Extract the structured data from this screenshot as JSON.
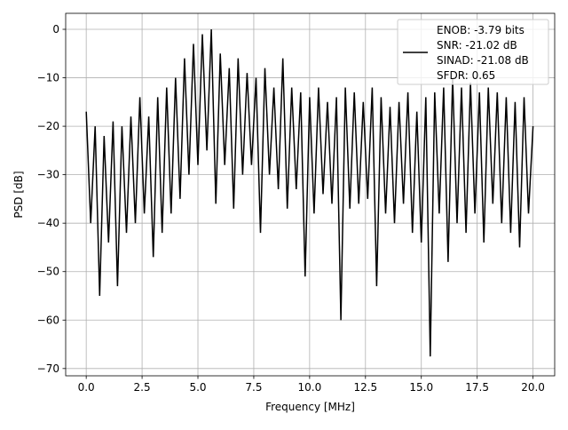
{
  "chart_data": {
    "type": "line",
    "title": "",
    "xlabel": "Frequency [MHz]",
    "ylabel": "PSD [dB]",
    "xlim": [
      -0.92,
      20.97
    ],
    "ylim": [
      -71.5,
      3.3
    ],
    "grid": true,
    "line_color": "#000000",
    "grid_color": "#b0b0b0",
    "xticks": [
      0,
      2.5,
      5,
      7.5,
      10,
      12.5,
      15,
      17.5,
      20
    ],
    "xtick_labels": [
      "0.0",
      "2.5",
      "5.0",
      "7.5",
      "10.0",
      "12.5",
      "15.0",
      "17.5",
      "20.0"
    ],
    "yticks": [
      0,
      -10,
      -20,
      -30,
      -40,
      -50,
      -60,
      -70
    ],
    "ytick_labels": [
      "0",
      "−10",
      "−20",
      "−30",
      "−40",
      "−50",
      "−60",
      "−70"
    ],
    "legend_placement": "upper right",
    "legend": [
      "ENOB: -3.79 bits",
      "SNR: -21.02 dB",
      "SINAD: -21.08 dB",
      "SFDR: 0.65"
    ],
    "series": [
      {
        "x": [
          0,
          0.2,
          0.4,
          0.6,
          0.8,
          1,
          1.2,
          1.4,
          1.6,
          1.8,
          2,
          2.2,
          2.4,
          2.6,
          2.8,
          3,
          3.2,
          3.4,
          3.6,
          3.8,
          4,
          4.2,
          4.4,
          4.6,
          4.8,
          5,
          5.2,
          5.4,
          5.6,
          5.8,
          6,
          6.2,
          6.4,
          6.6,
          6.8,
          7,
          7.2,
          7.4,
          7.6,
          7.8,
          8,
          8.2,
          8.4,
          8.6,
          8.8,
          9,
          9.2,
          9.4,
          9.6,
          9.8,
          10,
          10.2,
          10.4,
          10.6,
          10.8,
          11,
          11.2,
          11.4,
          11.6,
          11.8,
          12,
          12.2,
          12.4,
          12.6,
          12.8,
          13,
          13.2,
          13.4,
          13.6,
          13.8,
          14,
          14.2,
          14.4,
          14.6,
          14.8,
          15,
          15.2,
          15.4,
          15.6,
          15.8,
          16,
          16.2,
          16.4,
          16.6,
          16.8,
          17,
          17.2,
          17.4,
          17.6,
          17.8,
          18,
          18.2,
          18.4,
          18.6,
          18.8,
          19,
          19.2,
          19.4,
          19.6,
          19.8,
          20
        ],
        "y": [
          -17,
          -40,
          -20,
          -55,
          -22,
          -44,
          -19,
          -53,
          -20,
          -42,
          -18,
          -40,
          -14,
          -38,
          -18,
          -47,
          -14,
          -42,
          -12,
          -38,
          -10,
          -35,
          -6,
          -30,
          -3,
          -28,
          -1,
          -25,
          0,
          -36,
          -5,
          -28,
          -8,
          -37,
          -6,
          -30,
          -9,
          -28,
          -10,
          -42,
          -8,
          -30,
          -12,
          -33,
          -6,
          -37,
          -12,
          -33,
          -13,
          -51,
          -14,
          -38,
          -12,
          -34,
          -15,
          -36,
          -14,
          -60,
          -12,
          -37,
          -13,
          -36,
          -15,
          -35,
          -12,
          -53,
          -14,
          -38,
          -16,
          -40,
          -15,
          -36,
          -13,
          -42,
          -17,
          -44,
          -14,
          -67.5,
          -13,
          -38,
          -12,
          -48,
          -10,
          -40,
          -12,
          -42,
          -11,
          -38,
          -13,
          -44,
          -12,
          -36,
          -13,
          -40,
          -14,
          -42,
          -15,
          -45,
          -14,
          -38,
          -20
        ]
      }
    ]
  }
}
